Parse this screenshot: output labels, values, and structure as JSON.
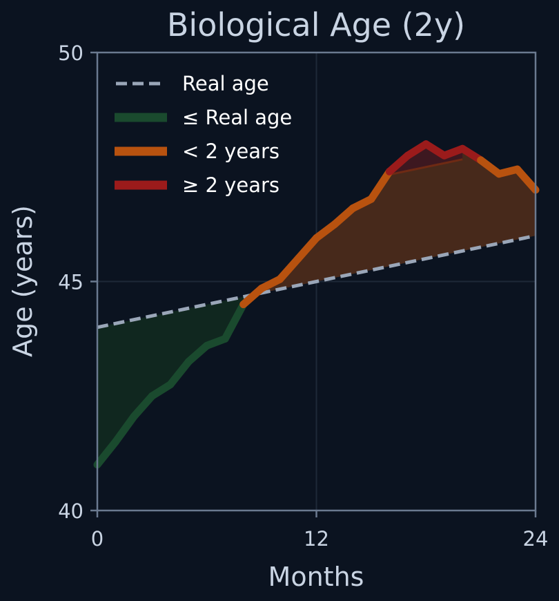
{
  "chart_data": {
    "type": "line",
    "title": "Biological Age (2y)",
    "xlabel": "Months",
    "ylabel": "Age (years)",
    "xlim": [
      0,
      24
    ],
    "ylim": [
      40,
      50
    ],
    "xticks": [
      "0",
      "12",
      "24"
    ],
    "yticks": [
      "40",
      "45",
      "50"
    ],
    "grid": true,
    "legend_position": "top-left",
    "legend": [
      {
        "label": "Real age",
        "color": "#9aa6b8",
        "style": "dashed"
      },
      {
        "label": "≤ Real age",
        "color": "#1a4a2e",
        "style": "solid"
      },
      {
        "label": "< 2 years",
        "color": "#b8520f",
        "style": "solid"
      },
      {
        "label": "≥ 2 years",
        "color": "#9b1b1b",
        "style": "solid"
      }
    ],
    "real_age": {
      "x": [
        0,
        24
      ],
      "y": [
        44.0,
        46.0
      ]
    },
    "biological_age": {
      "x": [
        0,
        1,
        2,
        3,
        4,
        5,
        6,
        7,
        8,
        9,
        10,
        11,
        12,
        13,
        14,
        15,
        16,
        17,
        18,
        19,
        20,
        21,
        22,
        23,
        24
      ],
      "y": [
        41.0,
        41.5,
        42.05,
        42.5,
        42.75,
        43.25,
        43.6,
        43.75,
        44.5,
        44.85,
        45.05,
        45.5,
        45.95,
        46.25,
        46.6,
        46.8,
        47.4,
        47.75,
        48.0,
        47.75,
        47.9,
        47.65,
        47.35,
        47.45,
        47.0
      ]
    },
    "colors": {
      "below": "#1a4a2e",
      "below_fill": "#10271f",
      "within_2y": "#b8520f",
      "within_2y_fill": "#47291b",
      "above_2y": "#9b1b1b",
      "above_2y_fill": "#3d1820",
      "real_age": "#9aa6b8",
      "axis": "#6b7a90",
      "grid": "#1e2838",
      "background": "#0b1320"
    }
  }
}
